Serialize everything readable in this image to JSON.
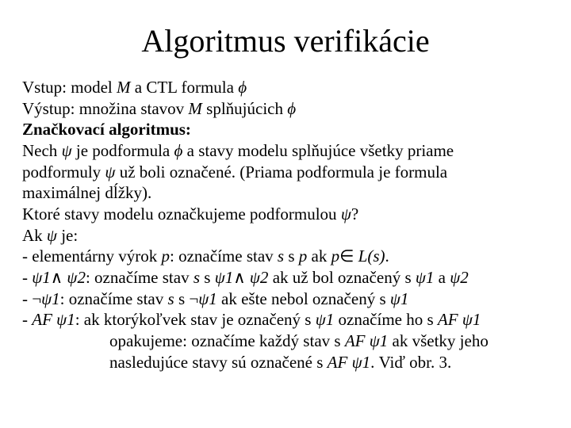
{
  "title": "Algoritmus verifikácie",
  "lines": {
    "l1a": "Vstup: model ",
    "l1b": "M",
    "l1c": "  a CTL formula ",
    "l1d": "ϕ",
    "l2a": "Výstup: množina stavov ",
    "l2b": "M",
    "l2c": " splňujúcich ",
    "l2d": "ϕ",
    "l3": "Značkovací algoritmus:",
    "l4a": "Nech ",
    "l4b": "ψ ",
    "l4c": "je podformula ",
    "l4d": "ϕ",
    "l4e": "  a stavy modelu splňujúce všetky priame",
    "l5a": "podformuly ",
    "l5b": "ψ ",
    "l5c": "už boli označené. (Priama podformula je formula",
    "l6": "maximálnej dĺžky).",
    "l7a": "Ktoré stavy modelu označkujeme podformulou ",
    "l7b": "ψ",
    "l7c": "?",
    "l8a": "Ak ",
    "l8b": "ψ ",
    "l8c": "je:",
    "l9a": " - elementárny výrok ",
    "l9b": "p",
    "l9c": ": označíme stav ",
    "l9d": "s",
    "l9e": " s ",
    "l9f": "p",
    "l9g": " ak ",
    "l9h": "p",
    "l9i": "∈  ",
    "l9j": "L(s)",
    "l9k": ".",
    "l10a": " - ",
    "l10b": "ψ1",
    "l10c": "∧ ",
    "l10d": "ψ2",
    "l10e": ": označíme stav ",
    "l10f": "s",
    "l10g": " s ",
    "l10h": "ψ1",
    "l10i": "∧ ",
    "l10j": "ψ2",
    "l10k": " ak už bol označený s ",
    "l10l": "ψ1",
    "l10m": " a ",
    "l10n": "ψ2",
    "l11a": " - ",
    "l11b": "¬",
    "l11c": "ψ1",
    "l11d": ": označíme stav ",
    "l11e": "s",
    "l11f": " s ",
    "l11g": "¬",
    "l11h": "ψ1",
    "l11i": " ak ešte nebol označený s ",
    "l11j": "ψ1",
    "l12a": " - ",
    "l12b": "AF ",
    "l12c": "ψ1",
    "l12d": ": ak ktorýkoľvek stav je označený s ",
    "l12e": "ψ1",
    "l12f": " označíme ho s ",
    "l12g": "AF ",
    "l12h": "ψ1",
    "l13a": "opakujeme: označíme každý stav s ",
    "l13b": "AF ",
    "l13c": "ψ1",
    "l13d": " ak všetky jeho",
    "l14a": "nasledujúce stavy sú označené s ",
    "l14b": "AF ",
    "l14c": "ψ1",
    "l14d": ". Viď obr. 3."
  },
  "style": {
    "background": "#ffffff",
    "text_color": "#000000",
    "title_fontsize": 40,
    "body_fontsize": 21,
    "font_family": "Times New Roman"
  }
}
